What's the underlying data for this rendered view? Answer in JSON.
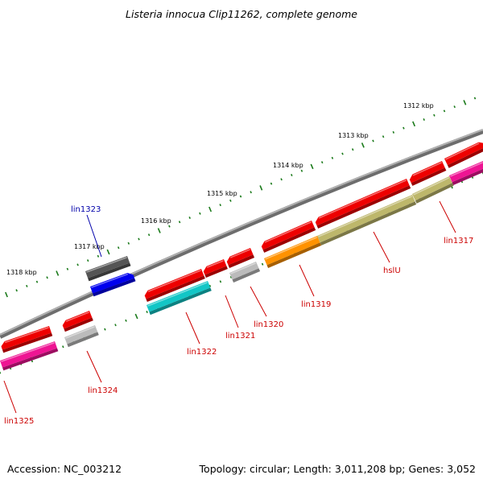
{
  "title": "Listeria innocua Clip11262, complete genome",
  "footer": {
    "accession_label": "Accession:",
    "accession": "NC_003212",
    "topology_label": "Topology:",
    "topology": "circular",
    "length_label": "Length:",
    "length": "3,011,208 bp",
    "genes_label": "Genes:",
    "genes": "3,052"
  },
  "scale": {
    "unit": "kbp",
    "ticks": [
      {
        "label": "1312 kbp"
      },
      {
        "label": "1313 kbp"
      },
      {
        "label": "1314 kbp"
      },
      {
        "label": "1315 kbp"
      },
      {
        "label": "1316 kbp"
      },
      {
        "label": "1317 kbp"
      },
      {
        "label": "1318 kbp"
      }
    ]
  },
  "gene_labels": [
    {
      "name": "lin1317",
      "color": "#cc0000"
    },
    {
      "name": "hslU",
      "color": "#cc0000"
    },
    {
      "name": "lin1319",
      "color": "#cc0000"
    },
    {
      "name": "lin1320",
      "color": "#cc0000"
    },
    {
      "name": "lin1321",
      "color": "#cc0000"
    },
    {
      "name": "lin1322",
      "color": "#cc0000"
    },
    {
      "name": "lin1323",
      "color": "#0000aa"
    },
    {
      "name": "lin1324",
      "color": "#cc0000"
    },
    {
      "name": "lin1325",
      "color": "#cc0000"
    }
  ],
  "colors": {
    "backbone": "#8c8c8c",
    "gene_red": "#ee0000",
    "tick_green": "#1a7a1a",
    "magenta": "#ee1493",
    "cyan": "#12c6c6",
    "orange": "#ff9200",
    "khaki": "#bdb76b",
    "grey": "#bbbbbb",
    "dark_grey": "#555555",
    "blue": "#0000ee"
  }
}
